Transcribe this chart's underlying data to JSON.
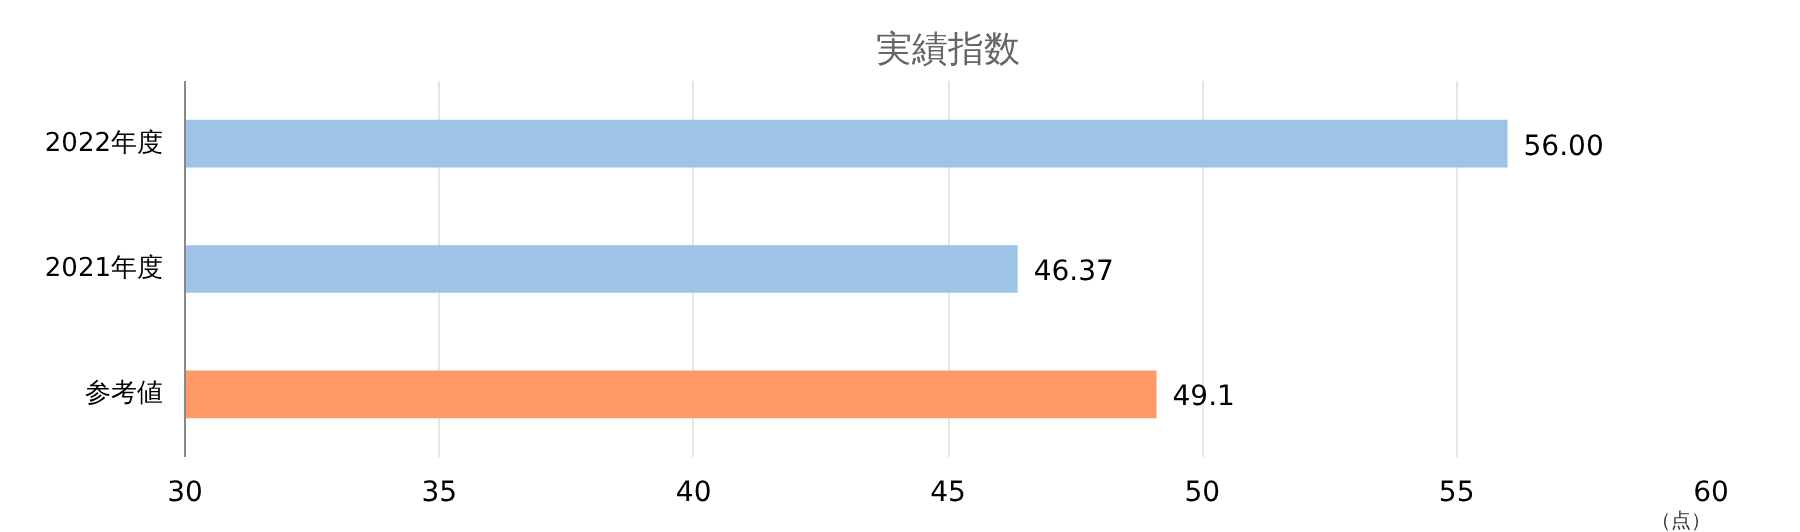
{
  "chart_data": {
    "type": "bar",
    "orientation": "horizontal",
    "title": "実績指数",
    "xlabel": "（点）",
    "categories": [
      "2022年度",
      "2021年度",
      "参考値"
    ],
    "values": [
      56.0,
      46.37,
      49.1
    ],
    "colors": [
      "#9dc3e6",
      "#9dc3e6",
      "#ff9966"
    ],
    "value_labels": [
      "56.00",
      "46.37",
      "49.1"
    ],
    "xlim": [
      30,
      60
    ],
    "xticks": [
      30,
      35,
      40,
      45,
      50,
      55,
      60
    ],
    "grid": "x"
  }
}
